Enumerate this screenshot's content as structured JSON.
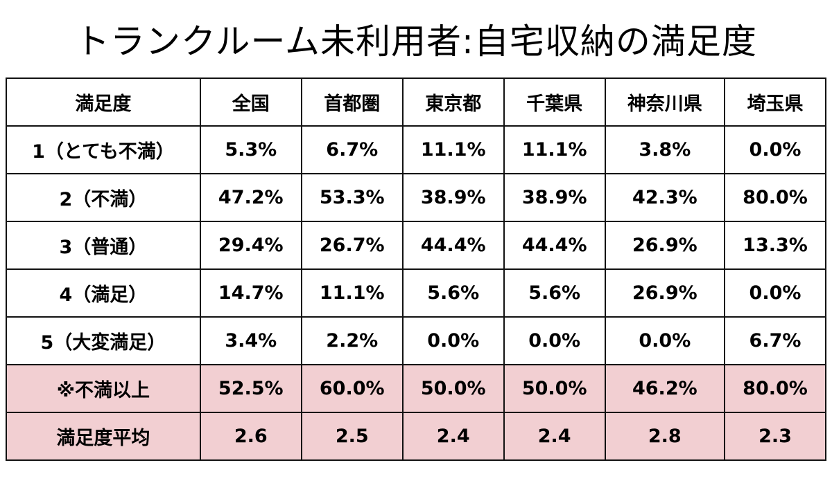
{
  "title": "トランクルーム未利用者:自宅収納の満足度",
  "table": {
    "headers": [
      "満足度",
      "全国",
      "首都圏",
      "東京都",
      "千葉県",
      "神奈川県",
      "埼玉県"
    ],
    "rows": [
      {
        "label": "1（とても不満）",
        "values": [
          "5.3%",
          "6.7%",
          "11.1%",
          "11.1%",
          "3.8%",
          "0.0%"
        ],
        "highlight": false
      },
      {
        "label": "2（不満）",
        "values": [
          "47.2%",
          "53.3%",
          "38.9%",
          "38.9%",
          "42.3%",
          "80.0%"
        ],
        "highlight": false
      },
      {
        "label": "3（普通）",
        "values": [
          "29.4%",
          "26.7%",
          "44.4%",
          "44.4%",
          "26.9%",
          "13.3%"
        ],
        "highlight": false
      },
      {
        "label": "4（満足）",
        "values": [
          "14.7%",
          "11.1%",
          "5.6%",
          "5.6%",
          "26.9%",
          "0.0%"
        ],
        "highlight": false
      },
      {
        "label": "5（大変満足）",
        "values": [
          "3.4%",
          "2.2%",
          "0.0%",
          "0.0%",
          "0.0%",
          "6.7%"
        ],
        "highlight": false
      },
      {
        "label": "※不満以上",
        "values": [
          "52.5%",
          "60.0%",
          "50.0%",
          "50.0%",
          "46.2%",
          "80.0%"
        ],
        "highlight": true
      },
      {
        "label": "満足度平均",
        "values": [
          "2.6",
          "2.5",
          "2.4",
          "2.4",
          "2.8",
          "2.3"
        ],
        "highlight": true
      }
    ]
  },
  "colors": {
    "highlight_row": "#f2cfd2",
    "border": "#111111"
  }
}
